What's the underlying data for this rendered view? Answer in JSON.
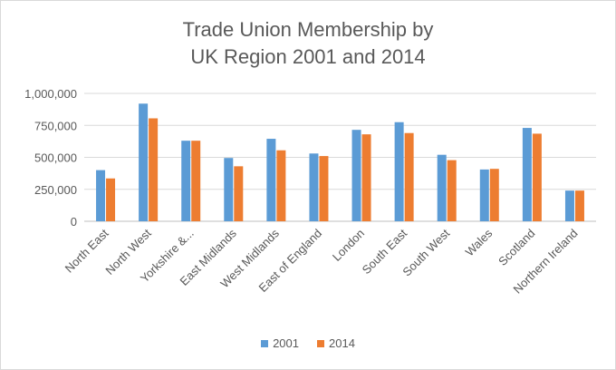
{
  "chart_data": {
    "type": "bar",
    "title_line1": "Trade Union Membership by",
    "title_line2": "UK Region 2001 and 2014",
    "categories": [
      "North East",
      "North West",
      "Yorkshire &...",
      "East Midlands",
      "West Midlands",
      "East of England",
      "London",
      "South East",
      "South West",
      "Wales",
      "Scotland",
      "Northern Ireland"
    ],
    "series": [
      {
        "name": "2001",
        "color": "#5b9bd5",
        "values": [
          400000,
          920000,
          630000,
          495000,
          645000,
          530000,
          715000,
          775000,
          520000,
          405000,
          730000,
          240000
        ]
      },
      {
        "name": "2014",
        "color": "#ed7d31",
        "values": [
          335000,
          805000,
          630000,
          430000,
          555000,
          510000,
          680000,
          690000,
          478000,
          410000,
          685000,
          240000
        ]
      }
    ],
    "yticks": [
      "0",
      "250,000",
      "500,000",
      "750,000",
      "1,000,000"
    ],
    "ylim": [
      0,
      1000000
    ],
    "grid": true,
    "legend_position": "bottom"
  }
}
